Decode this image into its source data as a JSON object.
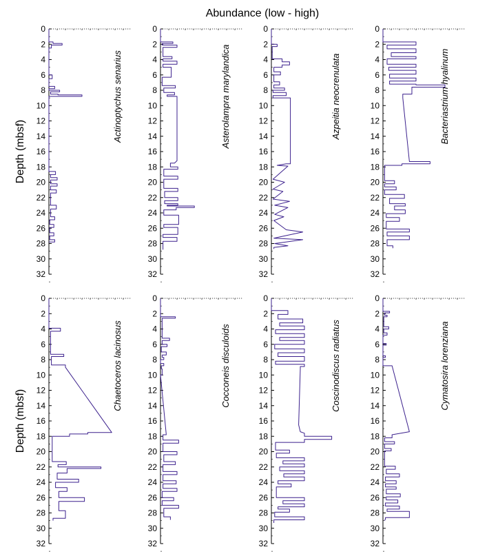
{
  "figure": {
    "top_title": "Abundance (low - high)",
    "ylabel": "Depth  (mbsf)"
  },
  "chart_data": [
    {
      "type": "line",
      "title": "Actinoptychus senarius",
      "ylabel": "Depth  (mbsf)",
      "ylim": [
        0,
        32
      ],
      "y_ticks": [
        0,
        2,
        4,
        6,
        8,
        10,
        12,
        14,
        16,
        18,
        20,
        22,
        24,
        26,
        28,
        30,
        32
      ],
      "xlim": [
        0,
        10
      ],
      "x": [
        0,
        0,
        0.5,
        0.5,
        1.6,
        1.6,
        0.3,
        0.3,
        0,
        0,
        0.4,
        0.4,
        0,
        0,
        0.7,
        0.7,
        0,
        0,
        1.3,
        1.3,
        0.2,
        0.2,
        1.1,
        1.1,
        4.0,
        4.0,
        0,
        0,
        0.8,
        0.8,
        0.2,
        0.2,
        1.0,
        1.0,
        0.2,
        0.2,
        1.0,
        1.0,
        0.2,
        0.2,
        0.9,
        0.9,
        0.2,
        0.2,
        0.9,
        0.9,
        0.2,
        0.2,
        0.7,
        0.7,
        0.1,
        0.1,
        0.6,
        0.6,
        0.1,
        0.1,
        0.6,
        0.6,
        0.1,
        0.1,
        0.7,
        0.7,
        0
      ],
      "y": [
        0,
        1.7,
        1.7,
        1.9,
        1.9,
        2.1,
        2.1,
        2.5,
        2.5,
        6.0,
        6.0,
        6.5,
        6.5,
        7.5,
        7.5,
        7.8,
        7.8,
        8.0,
        8.0,
        8.2,
        8.2,
        8.5,
        8.5,
        8.6,
        8.6,
        8.8,
        8.8,
        18.6,
        18.6,
        19.0,
        19.0,
        19.4,
        19.4,
        19.7,
        19.7,
        20.2,
        20.2,
        20.5,
        20.5,
        21.0,
        21.0,
        21.4,
        21.4,
        23.0,
        23.0,
        23.5,
        23.5,
        24.5,
        24.5,
        24.9,
        24.9,
        25.5,
        25.5,
        25.9,
        25.9,
        26.6,
        26.6,
        27.0,
        27.0,
        27.5,
        27.5,
        27.8,
        27.8
      ]
    },
    {
      "type": "line",
      "title": "Asterolampra marylandica",
      "ylim": [
        0,
        32
      ],
      "y_ticks": [
        0,
        2,
        4,
        6,
        8,
        10,
        12,
        14,
        16,
        18,
        20,
        22,
        24,
        26,
        28,
        30,
        32
      ],
      "xlim": [
        0,
        10
      ],
      "x": [
        0,
        0,
        1.5,
        1.5,
        0.2,
        0.2,
        2.0,
        2.0,
        0.3,
        0.3,
        1.4,
        1.4,
        0.3,
        0.3,
        2.0,
        2.0,
        0.3,
        0.3,
        1.3,
        1.3,
        0.2,
        0.2,
        1.8,
        1.8,
        0.4,
        0.4,
        1.7,
        1.7,
        0.8,
        0.8,
        2.0,
        2.0,
        1.7,
        1.2,
        1.2,
        2.1,
        2.1,
        0.4,
        0.4,
        2.1,
        2.1,
        0.4,
        0.4,
        2.1,
        2.1,
        0.5,
        0.5,
        2.1,
        2.1,
        0.5,
        0.5,
        2.1,
        2.1,
        0.8,
        0.8,
        4.1,
        4.1,
        1.9,
        1.9,
        0.4,
        0.4,
        2.2,
        2.2,
        0.4,
        0.4,
        2.1,
        2.1,
        0.3,
        0.3,
        2.0,
        2.0,
        0.3,
        0.3
      ],
      "y": [
        0,
        1.7,
        1.7,
        1.9,
        1.9,
        2.1,
        2.1,
        2.4,
        2.4,
        3.6,
        3.6,
        3.9,
        3.9,
        4.2,
        4.2,
        4.6,
        4.6,
        5.0,
        5.0,
        6.3,
        6.3,
        7.4,
        7.4,
        7.7,
        7.7,
        8.3,
        8.3,
        8.6,
        8.6,
        8.8,
        8.8,
        17.2,
        17.5,
        17.5,
        18.0,
        18.0,
        18.3,
        18.3,
        19.2,
        19.2,
        19.6,
        19.6,
        20.8,
        20.8,
        21.2,
        21.2,
        22.0,
        22.0,
        22.4,
        22.4,
        22.8,
        22.8,
        23.0,
        23.0,
        23.1,
        23.1,
        23.3,
        23.3,
        23.6,
        23.6,
        24.3,
        24.3,
        25.5,
        25.5,
        25.9,
        25.9,
        26.8,
        26.8,
        27.2,
        27.2,
        27.7,
        27.7,
        28.8
      ]
    },
    {
      "type": "line",
      "title": "Azpeitia neocrenulata",
      "ylim": [
        0,
        32
      ],
      "y_ticks": [
        0,
        2,
        4,
        6,
        8,
        10,
        12,
        14,
        16,
        18,
        20,
        22,
        24,
        26,
        28,
        30,
        32
      ],
      "xlim": [
        0,
        10
      ],
      "x": [
        0,
        0,
        0.7,
        0.7,
        0.1,
        0.1,
        1.3,
        1.3,
        2.2,
        2.2,
        1.3,
        1.3,
        0.3,
        0.3,
        1.1,
        1.1,
        0.3,
        0.3,
        1.0,
        1.0,
        0.3,
        0.3,
        1.6,
        1.6,
        0.2,
        0.2,
        1.8,
        1.8,
        0.2,
        0.2,
        2.3,
        2.3,
        1.8,
        0.7,
        0.7,
        2.0,
        2.0,
        0.2,
        0.2,
        1.6,
        1.6,
        0.2,
        0.2,
        1.4,
        1.4,
        0.2,
        0.2,
        2.2,
        2.2,
        0.4,
        0.4,
        2.0,
        2.0,
        0.4,
        0.4,
        1.5,
        1.5,
        0.3,
        0.3,
        1.8,
        1.8,
        3.8,
        3.8,
        1.6,
        1.6,
        0.3,
        0.3,
        3.8,
        3.8,
        0.4,
        0.4,
        2.0,
        2.0,
        0.3,
        0.3
      ],
      "y": [
        0,
        2.0,
        2.0,
        2.3,
        2.3,
        3.9,
        3.9,
        4.3,
        4.3,
        4.7,
        4.7,
        5.0,
        5.0,
        5.6,
        5.6,
        6.0,
        6.0,
        6.9,
        6.9,
        7.3,
        7.3,
        7.7,
        7.7,
        8.0,
        8.0,
        8.3,
        8.3,
        8.7,
        8.7,
        9.0,
        9.0,
        17.6,
        17.6,
        17.8,
        17.8,
        17.9,
        17.9,
        19.6,
        19.6,
        20.0,
        20.0,
        20.9,
        20.9,
        21.2,
        21.2,
        22.2,
        22.2,
        22.5,
        22.5,
        23.0,
        23.0,
        23.3,
        23.3,
        24.2,
        24.2,
        24.5,
        24.5,
        25.0,
        25.0,
        26.2,
        26.2,
        26.5,
        26.5,
        27.0,
        27.0,
        27.3,
        27.3,
        27.5,
        27.5,
        28.0,
        28.0,
        28.3,
        28.3,
        28.5,
        28.7
      ]
    },
    {
      "type": "line",
      "title": "Bacteriastrium hyalinum",
      "ylim": [
        0,
        32
      ],
      "y_ticks": [
        0,
        2,
        4,
        6,
        8,
        10,
        12,
        14,
        16,
        18,
        20,
        22,
        24,
        26,
        28,
        30,
        32
      ],
      "xlim": [
        0,
        10
      ],
      "x": [
        0,
        0,
        4.0,
        4.0,
        0.5,
        0.5,
        4.0,
        4.0,
        1.0,
        1.0,
        4.0,
        4.0,
        0.5,
        0.5,
        4.0,
        4.0,
        0.7,
        0.7,
        4.0,
        4.0,
        0.8,
        0.8,
        4.0,
        4.0,
        0.8,
        0.8,
        4.0,
        4.0,
        7.5,
        7.5,
        3.5,
        3.5,
        2.4,
        2.4,
        3.2,
        5.7,
        5.7,
        2.3,
        2.3,
        0.2,
        0.2,
        1.4,
        1.4,
        0.2,
        0.2,
        1.6,
        1.6,
        0.2,
        0.2,
        2.6,
        2.6,
        0.8,
        0.8,
        2.7,
        2.7,
        1.4,
        1.4,
        2.7,
        2.7,
        0.4,
        0.4,
        2.0,
        2.0,
        0.4,
        0.4,
        3.2,
        3.2,
        0.5,
        0.5,
        3.2,
        3.2,
        0.5,
        0.5,
        1.2,
        1.2
      ],
      "y": [
        0,
        1.7,
        1.7,
        2.1,
        2.1,
        2.6,
        2.6,
        3.1,
        3.1,
        3.6,
        3.6,
        3.9,
        3.9,
        4.6,
        4.6,
        5.0,
        5.0,
        5.4,
        5.4,
        5.9,
        5.9,
        6.4,
        6.4,
        6.8,
        6.8,
        7.2,
        7.2,
        7.3,
        7.3,
        7.6,
        7.6,
        8.5,
        8.5,
        9.0,
        17.3,
        17.3,
        17.6,
        17.6,
        17.8,
        17.8,
        19.8,
        19.8,
        20.2,
        20.2,
        20.6,
        20.6,
        21.0,
        21.0,
        21.6,
        21.6,
        22.1,
        22.1,
        22.8,
        22.8,
        23.1,
        23.1,
        23.6,
        23.6,
        24.1,
        24.1,
        24.6,
        24.6,
        25.1,
        25.1,
        26.1,
        26.1,
        26.5,
        26.5,
        27.0,
        27.0,
        27.5,
        27.5,
        28.3,
        28.3,
        28.6
      ]
    },
    {
      "type": "line",
      "title": "Chaetoceros lacinosus",
      "ylabel": "Depth  (mbsf)",
      "ylim": [
        0,
        32
      ],
      "y_ticks": [
        0,
        2,
        4,
        6,
        8,
        10,
        12,
        14,
        16,
        18,
        20,
        22,
        24,
        26,
        28,
        30,
        32
      ],
      "xlim": [
        0,
        10
      ],
      "x": [
        0,
        0,
        1.4,
        1.4,
        0.2,
        0.2,
        1.8,
        1.8,
        0.3,
        0.3,
        2.0,
        2.0,
        7.6,
        4.7,
        4.7,
        2.5,
        2.5,
        0.4,
        0.4,
        2.1,
        2.1,
        1.1,
        1.1,
        6.3,
        6.3,
        2.2,
        2.2,
        1.0,
        1.0,
        3.6,
        3.6,
        0.8,
        0.8,
        2.2,
        2.2,
        1.2,
        1.2,
        4.3,
        4.3,
        1.2,
        1.2,
        2.0,
        2.0,
        0.5,
        0.5
      ],
      "y": [
        0,
        3.9,
        3.9,
        4.3,
        4.3,
        7.3,
        7.3,
        7.6,
        7.6,
        8.7,
        8.7,
        9.0,
        17.5,
        17.5,
        17.7,
        17.7,
        18.0,
        18.0,
        21.3,
        21.3,
        21.7,
        21.7,
        22.0,
        22.0,
        22.2,
        22.2,
        22.8,
        22.8,
        23.6,
        23.6,
        24.0,
        24.0,
        24.7,
        24.7,
        25.2,
        25.2,
        26.0,
        26.0,
        26.5,
        26.5,
        27.7,
        27.7,
        28.7,
        28.7,
        29.0
      ]
    },
    {
      "type": "line",
      "title": "Cocconeis disculoids",
      "ylim": [
        0,
        32
      ],
      "y_ticks": [
        0,
        2,
        4,
        6,
        8,
        10,
        12,
        14,
        16,
        18,
        20,
        22,
        24,
        26,
        28,
        30,
        32
      ],
      "xlim": [
        0,
        10
      ],
      "x": [
        0,
        0,
        1.8,
        1.8,
        0.2,
        0.2,
        1.1,
        1.1,
        0.2,
        0.2,
        0.8,
        0.8,
        0.1,
        0.1,
        0.7,
        0.7,
        0.2,
        0.2,
        0.4,
        0.4,
        0,
        0,
        0.4,
        0.4,
        0.1,
        0.1,
        0.2,
        0.2,
        0,
        0.7,
        0.3,
        0.3,
        2.2,
        2.2,
        0.3,
        0.3,
        2.0,
        2.0,
        0.4,
        0.4,
        1.8,
        1.8,
        0.3,
        0.3,
        2.0,
        2.0,
        0.3,
        0.3,
        1.9,
        1.9,
        0.3,
        0.3,
        2.0,
        2.0,
        0.2,
        0.2,
        1.6,
        1.6,
        0.2,
        0.2,
        2.2,
        2.2,
        0.4,
        0.4,
        1.2,
        1.2
      ],
      "y": [
        0,
        2.4,
        2.4,
        2.6,
        2.6,
        5.2,
        5.2,
        5.5,
        5.5,
        6.0,
        6.0,
        6.3,
        6.3,
        7.0,
        7.0,
        7.4,
        7.4,
        7.7,
        7.7,
        8.0,
        8.0,
        8.5,
        8.5,
        8.8,
        8.8,
        9.2,
        9.2,
        10.0,
        10.0,
        17.8,
        17.8,
        18.5,
        18.5,
        18.9,
        18.9,
        20.0,
        20.0,
        20.4,
        20.4,
        21.3,
        21.3,
        21.7,
        21.7,
        22.6,
        22.6,
        23.0,
        23.0,
        23.8,
        23.8,
        24.2,
        24.2,
        24.8,
        24.8,
        25.2,
        25.2,
        26.0,
        26.0,
        26.4,
        26.4,
        27.0,
        27.0,
        27.4,
        27.4,
        28.5,
        28.5,
        28.9
      ]
    },
    {
      "type": "line",
      "title": "Coscinodiscus radiatus",
      "ylim": [
        0,
        32
      ],
      "y_ticks": [
        0,
        2,
        4,
        6,
        8,
        10,
        12,
        14,
        16,
        18,
        20,
        22,
        24,
        26,
        28,
        30,
        32
      ],
      "xlim": [
        0,
        10
      ],
      "x": [
        0,
        0,
        2.0,
        2.0,
        0.8,
        0.8,
        3.8,
        3.8,
        1.0,
        1.0,
        4.0,
        4.0,
        0.5,
        0.5,
        4.0,
        4.0,
        1.0,
        1.0,
        4.0,
        4.0,
        0.4,
        0.4,
        4.0,
        4.0,
        0.8,
        0.8,
        4.0,
        4.0,
        0.5,
        0.5,
        4.0,
        4.0,
        3.5,
        3.5,
        3.3,
        3.5,
        4.0,
        4.0,
        7.3,
        7.3,
        4.0,
        4.0,
        0.5,
        0.5,
        2.2,
        2.2,
        0.6,
        0.6,
        4.0,
        4.0,
        1.4,
        1.4,
        4.0,
        4.0,
        1.0,
        1.0,
        4.0,
        4.0,
        1.5,
        1.5,
        4.0,
        4.0,
        0.8,
        0.8,
        2.4,
        2.4,
        0.6,
        0.6,
        4.0,
        4.0,
        1.4,
        1.4,
        4.0,
        4.0,
        0.8,
        0.8,
        2.2,
        2.2,
        0.4,
        0.4,
        4.0,
        4.0,
        0.3,
        0.3
      ],
      "y": [
        0,
        1.6,
        1.6,
        2.1,
        2.1,
        2.7,
        2.7,
        3.2,
        3.2,
        3.6,
        3.6,
        4.1,
        4.1,
        4.6,
        4.6,
        5.1,
        5.1,
        5.5,
        5.5,
        6.0,
        6.0,
        6.6,
        6.6,
        7.1,
        7.1,
        7.6,
        7.6,
        8.2,
        8.2,
        8.6,
        8.6,
        8.9,
        8.9,
        9.2,
        16.5,
        17.4,
        17.6,
        18.0,
        18.0,
        18.4,
        18.4,
        18.8,
        18.8,
        19.8,
        19.8,
        20.2,
        20.2,
        20.8,
        20.8,
        21.2,
        21.2,
        21.6,
        21.6,
        22.0,
        22.0,
        22.5,
        22.5,
        22.9,
        22.9,
        23.3,
        23.3,
        23.8,
        23.8,
        24.2,
        24.2,
        24.6,
        24.6,
        26.0,
        26.0,
        26.4,
        26.4,
        26.8,
        26.8,
        27.2,
        27.2,
        27.5,
        27.5,
        27.9,
        27.9,
        28.5,
        28.5,
        28.9,
        28.9,
        29.3
      ]
    },
    {
      "type": "line",
      "title": "Cymatosira lorenziana",
      "ylim": [
        0,
        32
      ],
      "y_ticks": [
        0,
        2,
        4,
        6,
        8,
        10,
        12,
        14,
        16,
        18,
        20,
        22,
        24,
        26,
        28,
        30,
        32
      ],
      "xlim": [
        0,
        10
      ],
      "x": [
        0,
        0,
        0.8,
        0.8,
        0.2,
        0.2,
        0.5,
        0.5,
        0.1,
        0.1,
        0.7,
        0.7,
        0.1,
        0.1,
        0.5,
        0.5,
        0,
        0,
        0.4,
        0.4,
        0,
        0,
        0.3,
        0.3,
        0,
        0,
        1.1,
        3.2,
        1.1,
        1.1,
        0.2,
        0.2,
        1.4,
        1.4,
        0.2,
        0.2,
        1.0,
        1.0,
        0.2,
        0.2,
        1.5,
        1.5,
        0.4,
        0.4,
        2.0,
        2.0,
        0.3,
        0.3,
        1.6,
        1.6,
        0.3,
        0.3,
        1.6,
        1.6,
        0.4,
        0.4,
        2.1,
        2.1,
        0.4,
        0.4,
        1.8,
        1.8,
        0.3,
        0.3,
        2.0,
        2.0,
        0.5,
        0.5,
        3.2,
        3.2,
        0.3,
        0.3,
        0.2
      ],
      "y": [
        0,
        1.7,
        1.7,
        1.9,
        1.9,
        2.2,
        2.2,
        2.4,
        2.4,
        3.7,
        3.7,
        4.0,
        4.0,
        4.5,
        4.5,
        4.8,
        4.8,
        5.9,
        5.9,
        6.1,
        6.1,
        7.5,
        7.5,
        7.7,
        7.7,
        8.8,
        8.8,
        17.4,
        17.8,
        18.2,
        18.2,
        18.7,
        18.7,
        19.0,
        19.0,
        19.6,
        19.6,
        19.9,
        19.9,
        21.9,
        21.9,
        22.3,
        22.3,
        22.9,
        22.9,
        23.3,
        23.3,
        23.8,
        23.8,
        24.2,
        24.2,
        24.6,
        24.6,
        24.9,
        24.9,
        25.5,
        25.5,
        25.9,
        25.9,
        26.3,
        26.3,
        26.7,
        26.7,
        27.1,
        27.1,
        27.5,
        27.5,
        27.8,
        27.8,
        28.6,
        28.6,
        28.8,
        29.0
      ]
    }
  ]
}
